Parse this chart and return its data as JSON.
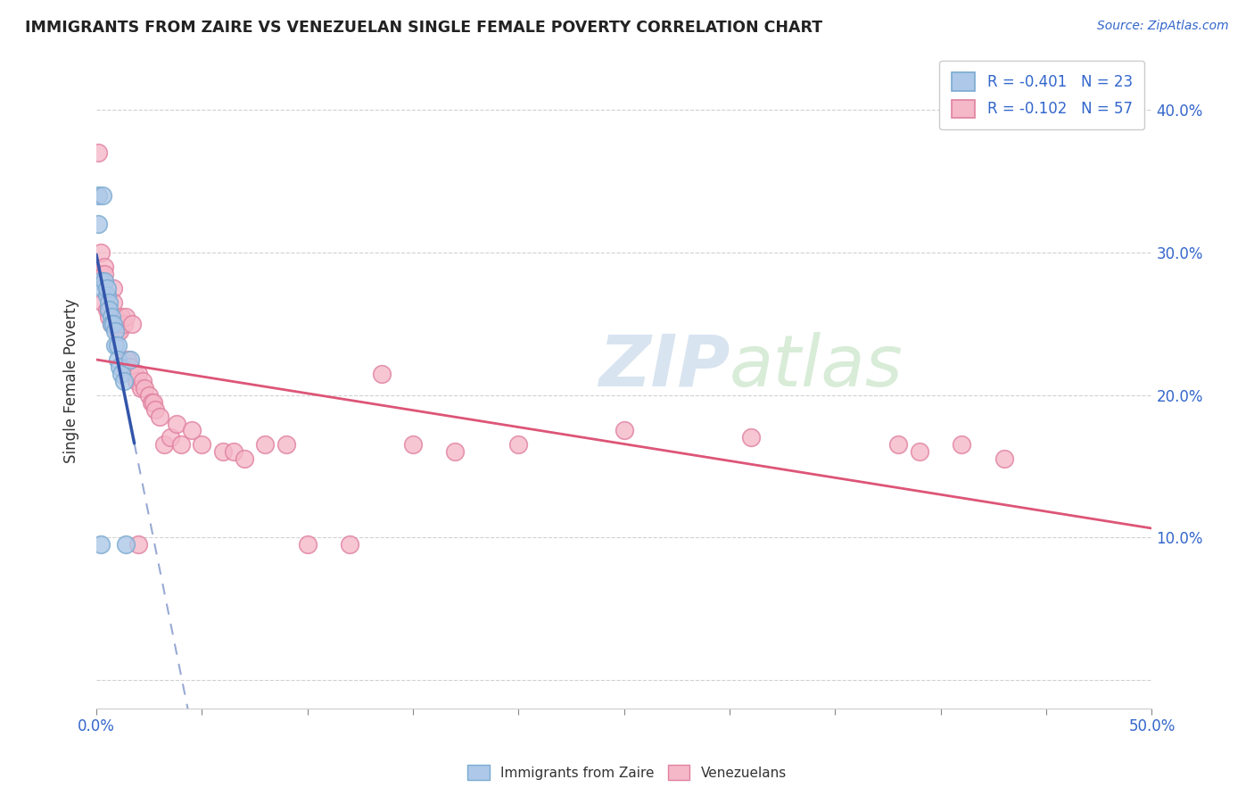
{
  "title": "IMMIGRANTS FROM ZAIRE VS VENEZUELAN SINGLE FEMALE POVERTY CORRELATION CHART",
  "source": "Source: ZipAtlas.com",
  "ylabel": "Single Female Poverty",
  "xlim": [
    0,
    0.5
  ],
  "ylim": [
    -0.02,
    0.44
  ],
  "blue_color": "#adc8e8",
  "blue_edge": "#7aaad0",
  "blue_line": "#3355aa",
  "pink_color": "#f5b8c8",
  "pink_edge": "#e080a0",
  "pink_line": "#dd5577",
  "watermark_zip_color": "#d8e4f0",
  "watermark_atlas_color": "#d8ecd8",
  "legend_label1": "R = -0.401   N = 23",
  "legend_label2": "R = -0.102   N = 57",
  "bottom_label1": "Immigrants from Zaire",
  "bottom_label2": "Venezuelans",
  "blue_x": [
    0.001,
    0.001,
    0.002,
    0.003,
    0.003,
    0.004,
    0.005,
    0.005,
    0.006,
    0.006,
    0.007,
    0.007,
    0.008,
    0.009,
    0.009,
    0.01,
    0.01,
    0.011,
    0.012,
    0.013,
    0.014,
    0.016,
    0.002
  ],
  "blue_y": [
    0.34,
    0.32,
    0.28,
    0.34,
    0.275,
    0.28,
    0.27,
    0.275,
    0.265,
    0.26,
    0.255,
    0.25,
    0.25,
    0.245,
    0.235,
    0.235,
    0.225,
    0.22,
    0.215,
    0.21,
    0.095,
    0.225,
    0.095
  ],
  "pink_x": [
    0.001,
    0.002,
    0.002,
    0.003,
    0.004,
    0.004,
    0.005,
    0.006,
    0.006,
    0.007,
    0.008,
    0.008,
    0.009,
    0.01,
    0.01,
    0.011,
    0.012,
    0.013,
    0.014,
    0.015,
    0.016,
    0.017,
    0.018,
    0.019,
    0.02,
    0.021,
    0.022,
    0.023,
    0.025,
    0.026,
    0.027,
    0.028,
    0.03,
    0.032,
    0.035,
    0.038,
    0.04,
    0.045,
    0.05,
    0.06,
    0.065,
    0.07,
    0.08,
    0.09,
    0.1,
    0.12,
    0.135,
    0.15,
    0.17,
    0.2,
    0.25,
    0.31,
    0.38,
    0.39,
    0.41,
    0.43,
    0.02
  ],
  "pink_y": [
    0.37,
    0.285,
    0.3,
    0.265,
    0.29,
    0.285,
    0.26,
    0.255,
    0.26,
    0.25,
    0.275,
    0.265,
    0.255,
    0.245,
    0.25,
    0.245,
    0.255,
    0.25,
    0.255,
    0.225,
    0.22,
    0.25,
    0.215,
    0.21,
    0.215,
    0.205,
    0.21,
    0.205,
    0.2,
    0.195,
    0.195,
    0.19,
    0.185,
    0.165,
    0.17,
    0.18,
    0.165,
    0.175,
    0.165,
    0.16,
    0.16,
    0.155,
    0.165,
    0.165,
    0.095,
    0.095,
    0.215,
    0.165,
    0.16,
    0.165,
    0.175,
    0.17,
    0.165,
    0.16,
    0.165,
    0.155,
    0.095
  ],
  "blue_line_x": [
    0.0,
    0.016
  ],
  "dashed_line_x": [
    0.016,
    0.28
  ],
  "x_minor_ticks": [
    0.05,
    0.1,
    0.15,
    0.2,
    0.25,
    0.3,
    0.35,
    0.4,
    0.45,
    0.5
  ]
}
